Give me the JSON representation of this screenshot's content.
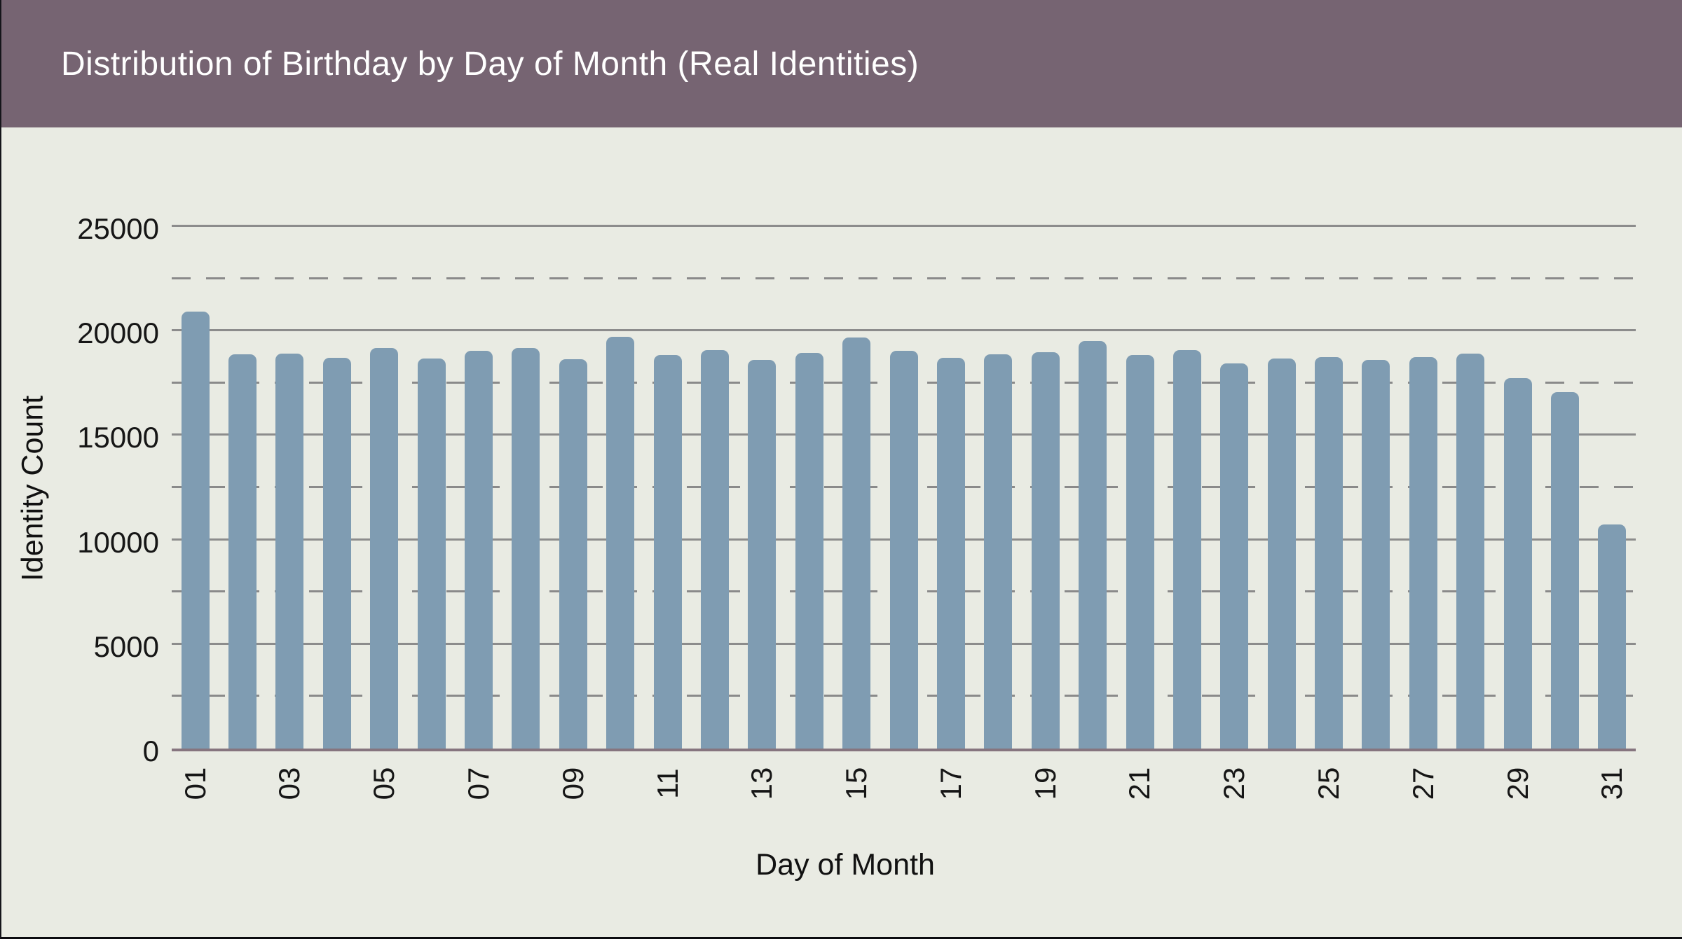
{
  "header": {
    "title": "Distribution of Birthday by Day of Month (Real Identities)"
  },
  "chart_data": {
    "type": "bar",
    "title": "Distribution of Birthday by Day of Month (Real Identities)",
    "xlabel": "Day of Month",
    "ylabel": "Identity Count",
    "categories": [
      "01",
      "02",
      "03",
      "04",
      "05",
      "06",
      "07",
      "08",
      "09",
      "10",
      "11",
      "12",
      "13",
      "14",
      "15",
      "16",
      "17",
      "18",
      "19",
      "20",
      "21",
      "22",
      "23",
      "24",
      "25",
      "26",
      "27",
      "28",
      "29",
      "30",
      "31"
    ],
    "values": [
      20900,
      18870,
      18890,
      18700,
      19170,
      18680,
      19040,
      19170,
      18630,
      19700,
      18830,
      19060,
      18610,
      18930,
      19680,
      19030,
      18700,
      18870,
      18970,
      19510,
      18830,
      19080,
      18440,
      18670,
      18720,
      18610,
      18730,
      18900,
      17730,
      17050,
      10720
    ],
    "visible_x_tick_labels": [
      "01",
      "03",
      "05",
      "07",
      "09",
      "11",
      "13",
      "15",
      "17",
      "19",
      "21",
      "23",
      "25",
      "27",
      "29",
      "31"
    ],
    "ylim": [
      0,
      25000
    ],
    "ytick_values": [
      0,
      5000,
      10000,
      15000,
      20000,
      25000
    ],
    "minor_grid_values": [
      2500,
      7500,
      12500,
      17500,
      22500
    ],
    "grid": "major horizontal solid, minor horizontal dashed, drawn behind bars",
    "legend_position": "none",
    "x_tick_label_rotation_degrees": 90
  },
  "colors": {
    "header_bg": "#766472",
    "title_text": "#ffffff",
    "page_bg": "#e9ebe3",
    "bar_fill": "#7f9cb2",
    "grid_major": "#8c8c8c",
    "grid_minor_dashed": "#8a8a8a",
    "x_axis_spine": "#86757f",
    "tick_text": "#161616"
  }
}
